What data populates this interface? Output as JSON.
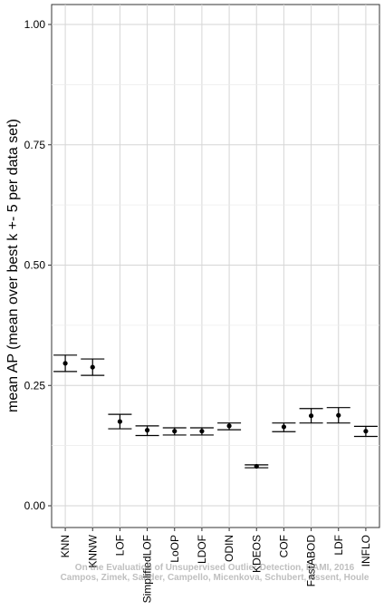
{
  "chart_data": {
    "type": "scatter",
    "ylabel": "mean AP (mean over best k +- 5 per data set)",
    "xlabel": "",
    "ylim": [
      0,
      1.05
    ],
    "yticks": [
      "0.00",
      "0.25",
      "0.50",
      "0.75",
      "1.00"
    ],
    "grid": true,
    "categories": [
      "KNN",
      "KNNW",
      "LOF",
      "SimplifiedLOF",
      "LoOP",
      "LDOF",
      "ODIN",
      "KDEOS",
      "COF",
      "FastABOD",
      "LDF",
      "INFLO"
    ],
    "mean": [
      0.296,
      0.288,
      0.175,
      0.157,
      0.155,
      0.155,
      0.166,
      0.082,
      0.164,
      0.187,
      0.188,
      0.155
    ],
    "lower": [
      0.279,
      0.271,
      0.16,
      0.146,
      0.147,
      0.147,
      0.158,
      0.079,
      0.154,
      0.172,
      0.172,
      0.144
    ],
    "upper": [
      0.313,
      0.305,
      0.19,
      0.166,
      0.162,
      0.162,
      0.172,
      0.085,
      0.172,
      0.202,
      0.204,
      0.165
    ]
  },
  "watermark": {
    "line1": "On the Evaluation of Unsupervised Outlier Detection, DAMI, 2016",
    "line2": "Campos, Zimek, Sander, Campello, Micenkova, Schubert, Assent, Houle"
  }
}
